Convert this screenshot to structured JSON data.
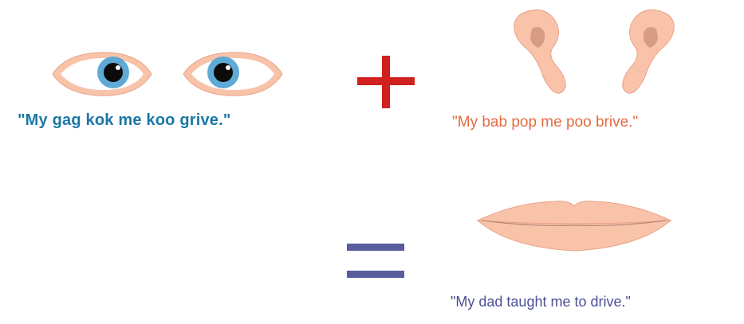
{
  "eyes_caption": "\"My gag kok me koo grive.\"",
  "ears_caption": "\"My bab pop me poo brive.\"",
  "lips_caption": "\"My dad taught me to drive.\"",
  "colors": {
    "eyes_caption": "#1b77a7",
    "ears_caption": "#e46a43",
    "lips_caption": "#4c4f93",
    "plus": "#d0201f",
    "equals": "#575e9b",
    "skin": "#f9c3aa",
    "iris": "#5fa9d6"
  },
  "icons": {
    "eyes": "eyes-icon",
    "ears": "ears-icon",
    "lips": "lips-icon",
    "plus": "plus-sign",
    "equals": "equals-sign"
  }
}
